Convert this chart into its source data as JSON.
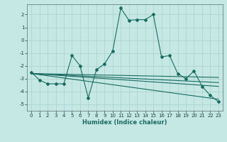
{
  "xlabel": "Humidex (Indice chaleur)",
  "background_color": "#c5e8e5",
  "grid_color": "#afd4d0",
  "line_color": "#1a6b60",
  "ylim": [
    -5.5,
    2.8
  ],
  "xlim": [
    -0.5,
    23.5
  ],
  "yticks": [
    -5,
    -4,
    -3,
    -2,
    -1,
    0,
    1,
    2
  ],
  "xticks": [
    0,
    1,
    2,
    3,
    4,
    5,
    6,
    7,
    8,
    9,
    10,
    11,
    12,
    13,
    14,
    15,
    16,
    17,
    18,
    19,
    20,
    21,
    22,
    23
  ],
  "line1_x": [
    0,
    1,
    2,
    3,
    4,
    5,
    6,
    7,
    8,
    9,
    10,
    11,
    12,
    13,
    14,
    15,
    16,
    17,
    18,
    19,
    20,
    21,
    22,
    23
  ],
  "line1_y": [
    -2.5,
    -3.1,
    -3.4,
    -3.4,
    -3.4,
    -1.2,
    -2.0,
    -4.5,
    -2.3,
    -1.85,
    -0.85,
    2.5,
    1.55,
    1.6,
    1.6,
    2.0,
    -1.3,
    -1.2,
    -2.6,
    -3.0,
    -2.4,
    -3.6,
    -4.3,
    -4.8
  ],
  "line2_x": [
    0,
    23
  ],
  "line2_y": [
    -2.6,
    -2.9
  ],
  "line3_x": [
    0,
    23
  ],
  "line3_y": [
    -2.6,
    -3.3
  ],
  "line4_x": [
    0,
    23
  ],
  "line4_y": [
    -2.6,
    -4.6
  ],
  "line5_x": [
    0,
    23
  ],
  "line5_y": [
    -2.6,
    -3.6
  ]
}
